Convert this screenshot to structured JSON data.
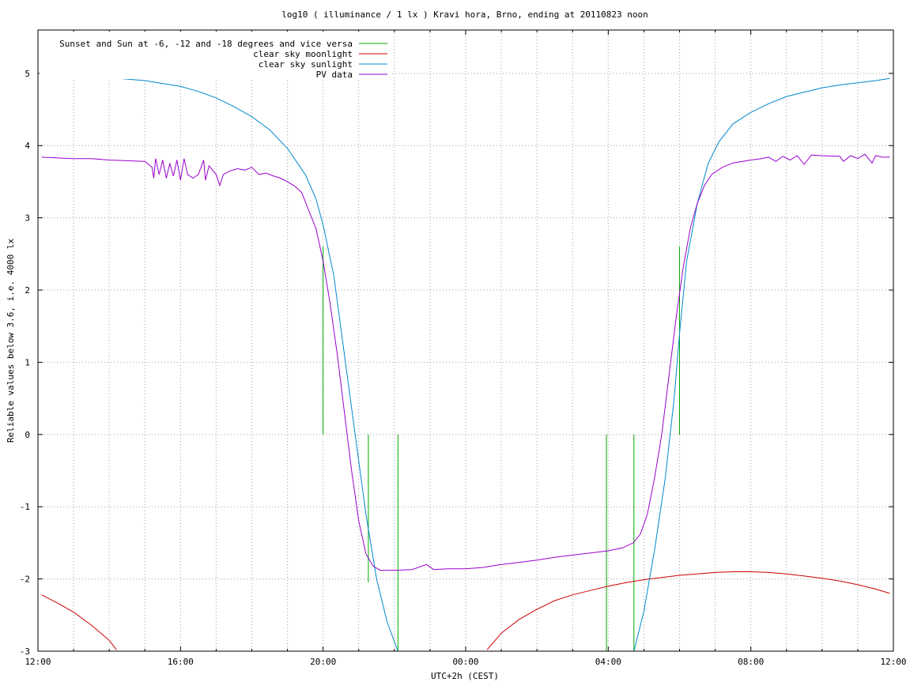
{
  "chart_data": {
    "type": "line",
    "title": "log10 ( illuminance / 1 lx ) Kravi hora, Brno, ending at 20110823 noon",
    "xlabel": "UTC+2h (CEST)",
    "ylabel": "Reliable values below 3.6, i.e. 4000 lx",
    "ylim": [
      -3,
      5.6
    ],
    "xlim": [
      12,
      36
    ],
    "grid": true,
    "legend_position": "top-left",
    "x_ticks": [
      {
        "x": 12,
        "label": "12:00"
      },
      {
        "x": 16,
        "label": "16:00"
      },
      {
        "x": 20,
        "label": "20:00"
      },
      {
        "x": 24,
        "label": "00:00"
      },
      {
        "x": 28,
        "label": "04:00"
      },
      {
        "x": 32,
        "label": "08:00"
      },
      {
        "x": 36,
        "label": "12:00"
      }
    ],
    "y_ticks": [
      {
        "y": -3,
        "label": "-3"
      },
      {
        "y": -2,
        "label": "-2"
      },
      {
        "y": -1,
        "label": "-1"
      },
      {
        "y": 0,
        "label": "0"
      },
      {
        "y": 1,
        "label": "1"
      },
      {
        "y": 2,
        "label": "2"
      },
      {
        "y": 3,
        "label": "3"
      },
      {
        "y": 4,
        "label": "4"
      },
      {
        "y": 5,
        "label": "5"
      }
    ],
    "series": [
      {
        "name": "Sunset and Sun at -6, -12 and -18 degrees and vice versa",
        "kind": "vertical-markers",
        "color": "#00aa00",
        "segments": [
          {
            "x": 20.0,
            "y0": 0,
            "y1": 2.6
          },
          {
            "x": 21.27,
            "y0": 0,
            "y1": -2.05
          },
          {
            "x": 22.1,
            "y0": 0,
            "y1": -3
          },
          {
            "x": 27.95,
            "y0": 0,
            "y1": -3
          },
          {
            "x": 28.72,
            "y0": 0,
            "y1": -3
          },
          {
            "x": 30.0,
            "y0": 0,
            "y1": 2.6
          }
        ]
      },
      {
        "name": "clear sky moonlight",
        "kind": "line",
        "color": "#cc0000",
        "points": [
          [
            12.1,
            -2.22
          ],
          [
            12.5,
            -2.32
          ],
          [
            13.0,
            -2.46
          ],
          [
            13.5,
            -2.64
          ],
          [
            14.0,
            -2.85
          ],
          [
            14.2,
            -2.98
          ],
          [
            null,
            null
          ],
          [
            24.6,
            -2.98
          ],
          [
            25.0,
            -2.75
          ],
          [
            25.5,
            -2.56
          ],
          [
            26.0,
            -2.42
          ],
          [
            26.5,
            -2.3
          ],
          [
            27.0,
            -2.22
          ],
          [
            27.5,
            -2.16
          ],
          [
            28.0,
            -2.1
          ],
          [
            28.5,
            -2.05
          ],
          [
            29.0,
            -2.01
          ],
          [
            29.5,
            -1.98
          ],
          [
            30.0,
            -1.95
          ],
          [
            30.5,
            -1.93
          ],
          [
            31.0,
            -1.91
          ],
          [
            31.5,
            -1.9
          ],
          [
            32.0,
            -1.9
          ],
          [
            32.5,
            -1.91
          ],
          [
            33.0,
            -1.93
          ],
          [
            33.5,
            -1.96
          ],
          [
            34.0,
            -1.99
          ],
          [
            34.5,
            -2.03
          ],
          [
            35.0,
            -2.08
          ],
          [
            35.5,
            -2.14
          ],
          [
            35.9,
            -2.2
          ]
        ]
      },
      {
        "name": "clear sky sunlight",
        "kind": "line",
        "color": "#0088cc",
        "points": [
          [
            12.1,
            4.94
          ],
          [
            13.0,
            4.96
          ],
          [
            14.0,
            4.94
          ],
          [
            15.0,
            4.9
          ],
          [
            16.0,
            4.82
          ],
          [
            16.5,
            4.75
          ],
          [
            17.0,
            4.66
          ],
          [
            17.5,
            4.54
          ],
          [
            18.0,
            4.4
          ],
          [
            18.5,
            4.22
          ],
          [
            19.0,
            3.96
          ],
          [
            19.5,
            3.6
          ],
          [
            19.8,
            3.26
          ],
          [
            20.0,
            2.9
          ],
          [
            20.3,
            2.2
          ],
          [
            20.6,
            1.1
          ],
          [
            20.9,
            0.0
          ],
          [
            21.2,
            -1.1
          ],
          [
            21.5,
            -2.0
          ],
          [
            21.8,
            -2.6
          ],
          [
            22.1,
            -3.0
          ],
          [
            null,
            null
          ],
          [
            28.72,
            -3.0
          ],
          [
            29.0,
            -2.45
          ],
          [
            29.3,
            -1.6
          ],
          [
            29.6,
            -0.6
          ],
          [
            29.85,
            0.5
          ],
          [
            30.0,
            1.4
          ],
          [
            30.2,
            2.4
          ],
          [
            30.5,
            3.2
          ],
          [
            30.8,
            3.75
          ],
          [
            31.1,
            4.05
          ],
          [
            31.5,
            4.3
          ],
          [
            32.0,
            4.46
          ],
          [
            32.5,
            4.58
          ],
          [
            33.0,
            4.68
          ],
          [
            33.5,
            4.74
          ],
          [
            34.0,
            4.8
          ],
          [
            34.5,
            4.84
          ],
          [
            35.0,
            4.87
          ],
          [
            35.5,
            4.9
          ],
          [
            35.9,
            4.93
          ]
        ]
      },
      {
        "name": "PV data",
        "kind": "line",
        "color": "#9900cc",
        "points": [
          [
            12.1,
            3.84
          ],
          [
            13.0,
            3.82
          ],
          [
            13.5,
            3.82
          ],
          [
            14.0,
            3.8
          ],
          [
            14.5,
            3.79
          ],
          [
            15.0,
            3.78
          ],
          [
            15.2,
            3.7
          ],
          [
            15.25,
            3.55
          ],
          [
            15.3,
            3.82
          ],
          [
            15.4,
            3.6
          ],
          [
            15.5,
            3.8
          ],
          [
            15.6,
            3.55
          ],
          [
            15.7,
            3.75
          ],
          [
            15.8,
            3.58
          ],
          [
            15.9,
            3.8
          ],
          [
            16.0,
            3.52
          ],
          [
            16.1,
            3.82
          ],
          [
            16.2,
            3.6
          ],
          [
            16.35,
            3.55
          ],
          [
            16.5,
            3.6
          ],
          [
            16.65,
            3.8
          ],
          [
            16.7,
            3.52
          ],
          [
            16.8,
            3.72
          ],
          [
            17.0,
            3.6
          ],
          [
            17.1,
            3.45
          ],
          [
            17.2,
            3.6
          ],
          [
            17.4,
            3.65
          ],
          [
            17.6,
            3.68
          ],
          [
            17.8,
            3.66
          ],
          [
            18.0,
            3.7
          ],
          [
            18.2,
            3.6
          ],
          [
            18.4,
            3.62
          ],
          [
            18.6,
            3.58
          ],
          [
            18.8,
            3.55
          ],
          [
            19.0,
            3.5
          ],
          [
            19.2,
            3.44
          ],
          [
            19.4,
            3.35
          ],
          [
            19.6,
            3.1
          ],
          [
            19.8,
            2.85
          ],
          [
            20.0,
            2.4
          ],
          [
            20.2,
            1.8
          ],
          [
            20.4,
            1.1
          ],
          [
            20.6,
            0.3
          ],
          [
            20.8,
            -0.5
          ],
          [
            21.0,
            -1.2
          ],
          [
            21.2,
            -1.65
          ],
          [
            21.4,
            -1.82
          ],
          [
            21.6,
            -1.88
          ],
          [
            22.0,
            -1.88
          ],
          [
            22.5,
            -1.87
          ],
          [
            22.9,
            -1.8
          ],
          [
            23.1,
            -1.87
          ],
          [
            23.5,
            -1.86
          ],
          [
            24.0,
            -1.86
          ],
          [
            24.5,
            -1.84
          ],
          [
            25.0,
            -1.8
          ],
          [
            25.5,
            -1.77
          ],
          [
            26.0,
            -1.74
          ],
          [
            26.5,
            -1.7
          ],
          [
            27.0,
            -1.67
          ],
          [
            27.5,
            -1.64
          ],
          [
            28.0,
            -1.61
          ],
          [
            28.4,
            -1.57
          ],
          [
            28.7,
            -1.5
          ],
          [
            28.9,
            -1.38
          ],
          [
            29.1,
            -1.1
          ],
          [
            29.3,
            -0.6
          ],
          [
            29.5,
            0.0
          ],
          [
            29.7,
            0.8
          ],
          [
            29.9,
            1.6
          ],
          [
            30.1,
            2.3
          ],
          [
            30.3,
            2.85
          ],
          [
            30.5,
            3.2
          ],
          [
            30.7,
            3.45
          ],
          [
            30.9,
            3.6
          ],
          [
            31.2,
            3.7
          ],
          [
            31.5,
            3.76
          ],
          [
            32.0,
            3.8
          ],
          [
            32.3,
            3.82
          ],
          [
            32.5,
            3.84
          ],
          [
            32.7,
            3.78
          ],
          [
            32.9,
            3.85
          ],
          [
            33.1,
            3.8
          ],
          [
            33.3,
            3.86
          ],
          [
            33.5,
            3.74
          ],
          [
            33.7,
            3.87
          ],
          [
            34.0,
            3.86
          ],
          [
            34.5,
            3.85
          ],
          [
            34.6,
            3.78
          ],
          [
            34.8,
            3.86
          ],
          [
            35.0,
            3.82
          ],
          [
            35.2,
            3.88
          ],
          [
            35.4,
            3.76
          ],
          [
            35.5,
            3.86
          ],
          [
            35.7,
            3.84
          ],
          [
            35.9,
            3.84
          ]
        ]
      }
    ]
  }
}
